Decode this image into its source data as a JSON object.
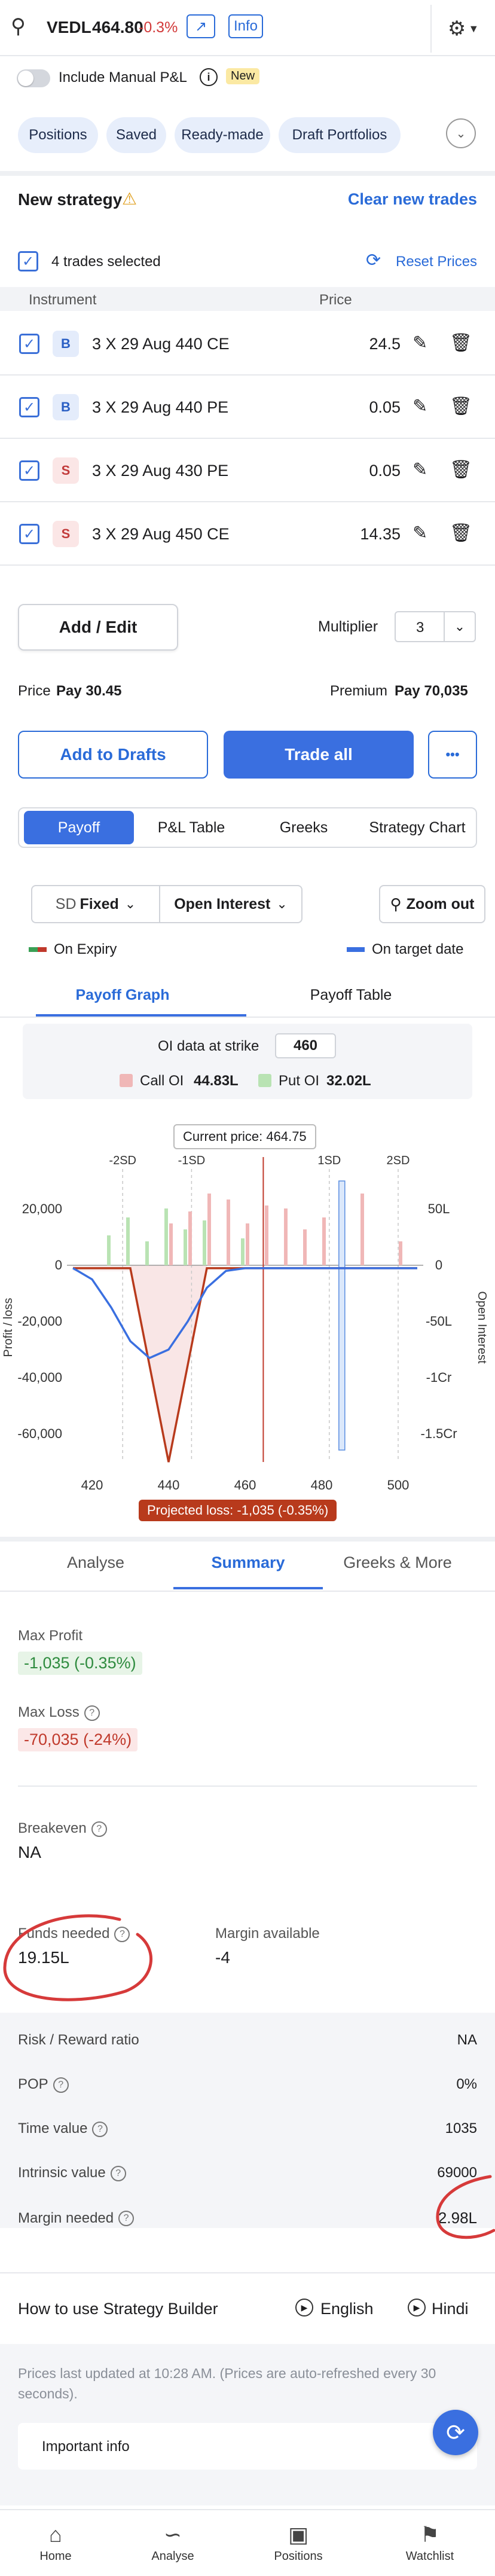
{
  "header": {
    "symbol": "VEDL",
    "price": "464.80",
    "change": "-0.3%",
    "chart_icon": "chart-line-icon",
    "info_label": "Info",
    "settings_icon": "gear-icon"
  },
  "manual_pnl": {
    "label": "Include Manual P&L",
    "badge": "New"
  },
  "tabs": {
    "items": [
      "Positions",
      "Saved",
      "Ready-made",
      "Draft Portfolios"
    ]
  },
  "strategy": {
    "title": "New strategy",
    "clear_label": "Clear new trades",
    "selected_label": "4 trades selected",
    "reset_label": "Reset Prices",
    "col_instrument": "Instrument",
    "col_price": "Price",
    "trades": [
      {
        "side": "B",
        "instrument": "3 X 29 Aug 440 CE",
        "price": "24.5"
      },
      {
        "side": "B",
        "instrument": "3 X 29 Aug 440 PE",
        "price": "0.05"
      },
      {
        "side": "S",
        "instrument": "3 X 29 Aug 430 PE",
        "price": "0.05"
      },
      {
        "side": "S",
        "instrument": "3 X 29 Aug 450 CE",
        "price": "14.35"
      }
    ],
    "add_edit_label": "Add / Edit",
    "multiplier_label": "Multiplier",
    "multiplier_value": "3",
    "price_label": "Price",
    "price_value": "Pay 30.45",
    "premium_label": "Premium",
    "premium_value": "Pay 70,035",
    "add_drafts_label": "Add to Drafts",
    "trade_all_label": "Trade all",
    "more_label": "•••"
  },
  "view_tabs": [
    "Payoff",
    "P&L Table",
    "Greeks",
    "Strategy Chart"
  ],
  "controls": {
    "sd_label": "SD",
    "sd_value": "Fixed",
    "oi_label": "Open Interest",
    "zoom_label": "Zoom out",
    "legend_expiry": "On Expiry",
    "legend_target": "On target date"
  },
  "payoff_tabs": [
    "Payoff Graph",
    "Payoff Table"
  ],
  "oi": {
    "label": "OI data at strike",
    "strike": "460",
    "call_label": "Call OI",
    "call_value": "44.83L",
    "put_label": "Put OI",
    "put_value": "32.02L"
  },
  "chart_data": {
    "type": "line",
    "current_price_label": "Current price: 464.75",
    "sd_labels": [
      "-2SD",
      "-1SD",
      "1SD",
      "2SD"
    ],
    "ylabel": "Profit / loss",
    "y2label": "Open Interest",
    "x_ticks": [
      420,
      440,
      460,
      480,
      500
    ],
    "y_ticks": [
      "20,000",
      "0",
      "-20,000",
      "-40,000",
      "-60,000"
    ],
    "y_tick_values": [
      20000,
      0,
      -20000,
      -40000,
      -60000
    ],
    "y2_ticks": [
      "50L",
      "0",
      "-50L",
      "-1Cr",
      "-1.5Cr"
    ],
    "xlim": [
      415,
      505
    ],
    "ylim": [
      -70000,
      30000
    ],
    "series": [
      {
        "name": "On Expiry",
        "x": [
          415,
          430,
          440,
          450,
          505
        ],
        "y": [
          -1035,
          -1035,
          -70035,
          -1035,
          -1035
        ]
      },
      {
        "name": "On target date",
        "x": [
          415,
          420,
          425,
          430,
          435,
          440,
          445,
          450,
          455,
          460,
          505
        ],
        "y": [
          -1000,
          -5000,
          -15000,
          -27000,
          -33000,
          -30000,
          -20000,
          -8000,
          -2000,
          -1035,
          -1035
        ]
      }
    ],
    "projected_loss_label": "Projected loss: -1,035 (-0.35%)"
  },
  "analysis_tabs": [
    "Analyse",
    "Summary",
    "Greeks & More"
  ],
  "summary": {
    "max_profit_label": "Max Profit",
    "max_profit_value": "-1,035 (-0.35%)",
    "max_loss_label": "Max Loss",
    "max_loss_value": "-70,035 (-24%)",
    "breakeven_label": "Breakeven",
    "breakeven_value": "NA",
    "funds_label": "Funds needed",
    "funds_value": "19.15L",
    "margin_avail_label": "Margin available",
    "margin_avail_value": "-4",
    "rows": [
      {
        "label": "Risk / Reward ratio",
        "value": "NA"
      },
      {
        "label": "POP",
        "value": "0%"
      },
      {
        "label": "Time value",
        "value": "1035"
      },
      {
        "label": "Intrinsic value",
        "value": "69000"
      },
      {
        "label": "Margin needed",
        "value": "2.98L"
      }
    ]
  },
  "howto": {
    "label": "How to use Strategy Builder",
    "english": "English",
    "hindi": "Hindi"
  },
  "footer": {
    "note": "Prices last updated at 10:28 AM. (Prices are auto-refreshed every 30 seconds).",
    "important_label": "Important info"
  },
  "bottom_nav": [
    "Home",
    "Analyse",
    "Positions",
    "Watchlist"
  ]
}
